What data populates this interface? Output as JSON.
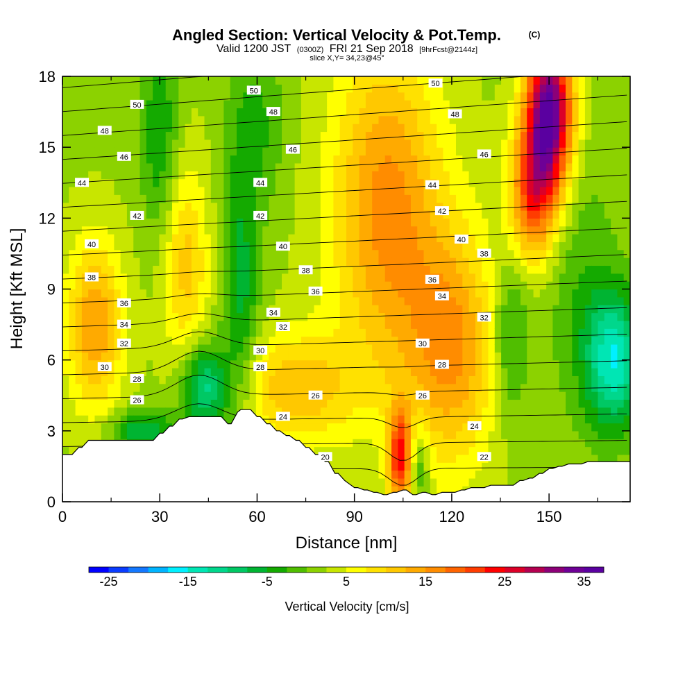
{
  "title": {
    "main": "Angled Section: Vertical Velocity & Pot.Temp.",
    "units_tag": "(C)",
    "valid_a": "Valid 1200 JST",
    "valid_b": "(0300Z)",
    "valid_c": "FRI 21 Sep 2018",
    "valid_d": "[9hrFcst@2144z]",
    "slice": "slice X,Y= 34,23@45°"
  },
  "chart_data": {
    "type": "heatmap",
    "description_free": true,
    "xlabel": "Distance [nm]",
    "ylabel": "Height [Kft MSL]",
    "xlim": [
      0,
      175
    ],
    "ylim": [
      0,
      18
    ],
    "x_ticks": [
      "0",
      "30",
      "60",
      "90",
      "120",
      "150"
    ],
    "x_tick_values": [
      0,
      30,
      60,
      90,
      120,
      150
    ],
    "y_ticks": [
      "0",
      "3",
      "6",
      "9",
      "12",
      "15",
      "18"
    ],
    "y_tick_values": [
      0,
      3,
      6,
      9,
      12,
      15,
      18
    ],
    "colorbar": {
      "label": "Vertical Velocity [cm/s]",
      "range": [
        -27.5,
        37.5
      ],
      "step": 2.5,
      "tick_labels": [
        "-25",
        "-15",
        "-5",
        "5",
        "15",
        "25",
        "35"
      ],
      "tick_values": [
        -25,
        -15,
        -5,
        5,
        15,
        25,
        35
      ],
      "colors": [
        "#0000ff",
        "#0a3cff",
        "#1478ff",
        "#00b4ff",
        "#00f0ff",
        "#00e6b4",
        "#00d78c",
        "#00c864",
        "#00b432",
        "#14aa00",
        "#50be00",
        "#8cd200",
        "#c8e600",
        "#ffff00",
        "#ffe100",
        "#ffc800",
        "#ffaa00",
        "#ff8c00",
        "#ff6400",
        "#ff3c00",
        "#ff0000",
        "#dc0028",
        "#b40050",
        "#8c0078",
        "#6e0096",
        "#5a00a0"
      ]
    },
    "terrain_x": [
      0,
      3,
      5,
      6,
      8,
      10,
      12,
      28,
      30,
      31,
      33,
      34,
      36,
      37,
      39,
      40,
      42,
      43,
      45,
      46,
      48,
      49,
      51,
      52,
      54,
      55,
      57,
      58,
      60,
      61,
      63,
      64,
      66,
      67,
      69,
      70,
      72,
      73,
      75,
      76,
      78,
      79,
      81,
      82,
      84,
      85,
      87,
      88,
      90,
      91,
      93,
      94,
      96,
      97,
      99,
      100,
      102,
      103,
      105,
      106,
      108,
      109,
      111,
      112,
      114,
      115,
      117,
      118,
      120,
      121,
      123,
      124,
      126,
      127,
      129,
      130,
      132,
      133,
      135,
      136,
      138,
      139,
      141,
      142,
      144,
      145,
      147,
      148,
      150,
      151,
      153,
      154,
      156,
      157,
      159,
      160,
      162,
      163,
      165,
      166,
      168,
      169,
      171,
      172,
      175
    ],
    "terrain_y": [
      2.0,
      2.0,
      2.3,
      2.3,
      2.6,
      2.6,
      2.6,
      2.6,
      2.9,
      2.9,
      3.2,
      3.2,
      3.5,
      3.5,
      3.6,
      3.6,
      3.6,
      3.6,
      3.6,
      3.6,
      3.6,
      3.6,
      3.3,
      3.3,
      3.8,
      3.9,
      3.9,
      3.9,
      3.6,
      3.6,
      3.3,
      3.3,
      3.0,
      3.0,
      2.8,
      2.8,
      2.6,
      2.6,
      2.3,
      2.3,
      2.0,
      2.0,
      1.7,
      1.7,
      1.2,
      1.2,
      0.9,
      0.8,
      0.6,
      0.6,
      0.5,
      0.5,
      0.4,
      0.4,
      0.3,
      0.3,
      0.4,
      0.4,
      0.5,
      0.5,
      0.3,
      0.3,
      0.4,
      0.4,
      0.3,
      0.3,
      0.4,
      0.4,
      0.4,
      0.4,
      0.5,
      0.5,
      0.6,
      0.6,
      0.6,
      0.6,
      0.7,
      0.7,
      0.7,
      0.7,
      0.7,
      0.7,
      0.9,
      0.9,
      1.0,
      1.0,
      1.2,
      1.2,
      1.4,
      1.4,
      1.5,
      1.5,
      1.6,
      1.6,
      1.6,
      1.6,
      1.7,
      1.7,
      1.7,
      1.7,
      1.7,
      1.7,
      1.7,
      1.7,
      1.7
    ],
    "theta_levels": [
      20,
      22,
      24,
      26,
      28,
      30,
      32,
      34,
      36,
      38,
      40,
      42,
      44,
      46,
      48,
      50
    ],
    "velocity_centers": [
      {
        "x": 10,
        "y": 7.5,
        "amp": 13,
        "sx": 6,
        "sy": 2.5
      },
      {
        "x": 38,
        "y": 10.0,
        "amp": 9,
        "sx": 5,
        "sy": 3.0
      },
      {
        "x": 55,
        "y": 9.0,
        "amp": -8,
        "sx": 4,
        "sy": 4.0
      },
      {
        "x": 44,
        "y": 4.8,
        "amp": -14,
        "sx": 5,
        "sy": 1.3
      },
      {
        "x": 25,
        "y": 3.0,
        "amp": -10,
        "sx": 7,
        "sy": 0.6
      },
      {
        "x": 72,
        "y": 4.8,
        "amp": 10,
        "sx": 13,
        "sy": 1.7
      },
      {
        "x": 100,
        "y": 12.5,
        "amp": 14,
        "sx": 12,
        "sy": 5.0
      },
      {
        "x": 120,
        "y": 6.5,
        "amp": 13,
        "sx": 10,
        "sy": 3.5
      },
      {
        "x": 104,
        "y": 1.8,
        "amp": 20,
        "sx": 2.5,
        "sy": 1.5
      },
      {
        "x": 150,
        "y": 16.5,
        "amp": 34,
        "sx": 5.0,
        "sy": 2.3
      },
      {
        "x": 145,
        "y": 13.0,
        "amp": 18,
        "sx": 5.0,
        "sy": 2.0
      },
      {
        "x": 170,
        "y": 6.0,
        "amp": -16,
        "sx": 6,
        "sy": 2.0
      },
      {
        "x": 138,
        "y": 7.0,
        "amp": -7,
        "sx": 4,
        "sy": 2.5
      },
      {
        "x": 30,
        "y": 15.5,
        "amp": -7,
        "sx": 4,
        "sy": 3.0
      },
      {
        "x": 60,
        "y": 16.0,
        "amp": -5,
        "sx": 6,
        "sy": 2.5
      },
      {
        "x": 110,
        "y": 1.5,
        "amp": -7,
        "sx": 2,
        "sy": 1.2
      },
      {
        "x": 160,
        "y": 9.0,
        "amp": -4,
        "sx": 8,
        "sy": 4.0
      }
    ],
    "contour_labels": [
      {
        "x": 23,
        "y": 16.8,
        "text": "50"
      },
      {
        "x": 59,
        "y": 17.4,
        "text": "50"
      },
      {
        "x": 115,
        "y": 17.7,
        "text": "50"
      },
      {
        "x": 13,
        "y": 15.7,
        "text": "48"
      },
      {
        "x": 65,
        "y": 16.5,
        "text": "48"
      },
      {
        "x": 121,
        "y": 16.4,
        "text": "48"
      },
      {
        "x": 19,
        "y": 14.6,
        "text": "46"
      },
      {
        "x": 71,
        "y": 14.9,
        "text": "46"
      },
      {
        "x": 130,
        "y": 14.7,
        "text": "46"
      },
      {
        "x": 6,
        "y": 13.5,
        "text": "44"
      },
      {
        "x": 61,
        "y": 13.5,
        "text": "44"
      },
      {
        "x": 114,
        "y": 13.4,
        "text": "44"
      },
      {
        "x": 23,
        "y": 12.1,
        "text": "42"
      },
      {
        "x": 61,
        "y": 12.1,
        "text": "42"
      },
      {
        "x": 117,
        "y": 12.3,
        "text": "42"
      },
      {
        "x": 9,
        "y": 10.9,
        "text": "40"
      },
      {
        "x": 68,
        "y": 10.8,
        "text": "40"
      },
      {
        "x": 123,
        "y": 11.1,
        "text": "40"
      },
      {
        "x": 9,
        "y": 9.5,
        "text": "38"
      },
      {
        "x": 75,
        "y": 9.8,
        "text": "38"
      },
      {
        "x": 130,
        "y": 10.5,
        "text": "38"
      },
      {
        "x": 19,
        "y": 8.4,
        "text": "36"
      },
      {
        "x": 78,
        "y": 8.9,
        "text": "36"
      },
      {
        "x": 114,
        "y": 9.4,
        "text": "36"
      },
      {
        "x": 19,
        "y": 7.5,
        "text": "34"
      },
      {
        "x": 65,
        "y": 8.0,
        "text": "34"
      },
      {
        "x": 117,
        "y": 8.7,
        "text": "34"
      },
      {
        "x": 19,
        "y": 6.7,
        "text": "32"
      },
      {
        "x": 68,
        "y": 7.4,
        "text": "32"
      },
      {
        "x": 130,
        "y": 7.8,
        "text": "32"
      },
      {
        "x": 13,
        "y": 5.7,
        "text": "30"
      },
      {
        "x": 61,
        "y": 6.4,
        "text": "30"
      },
      {
        "x": 111,
        "y": 6.7,
        "text": "30"
      },
      {
        "x": 23,
        "y": 5.2,
        "text": "28"
      },
      {
        "x": 61,
        "y": 5.7,
        "text": "28"
      },
      {
        "x": 117,
        "y": 5.8,
        "text": "28"
      },
      {
        "x": 23,
        "y": 4.3,
        "text": "26"
      },
      {
        "x": 78,
        "y": 4.5,
        "text": "26"
      },
      {
        "x": 111,
        "y": 4.5,
        "text": "26"
      },
      {
        "x": 68,
        "y": 3.6,
        "text": "24"
      },
      {
        "x": 127,
        "y": 3.2,
        "text": "24"
      },
      {
        "x": 81,
        "y": 1.9,
        "text": "20"
      },
      {
        "x": 130,
        "y": 1.9,
        "text": "22"
      }
    ]
  }
}
